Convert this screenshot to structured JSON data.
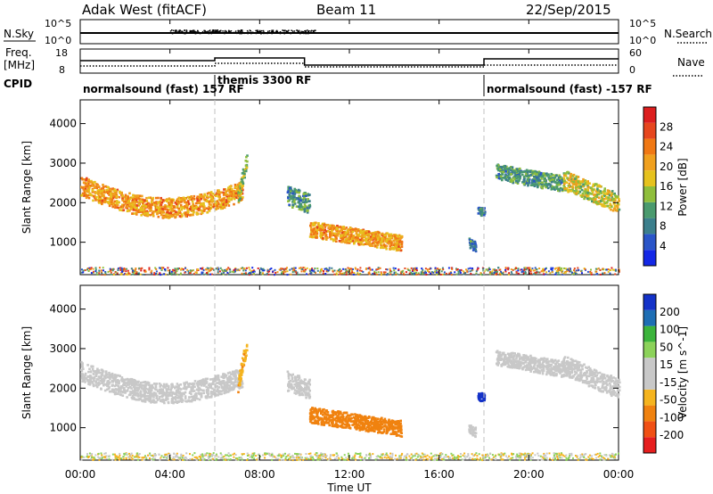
{
  "header": {
    "radar": "Adak West (fitACF)",
    "beam": "Beam 11",
    "date": "22/Sep/2015"
  },
  "strip": {
    "nsky_label": "N.Sky",
    "nsky_ticks": [
      "10^5",
      "10^0"
    ],
    "nsearch_label": "N.Search",
    "freq_label_line1": "Freq.",
    "freq_label_line2": "[MHz]",
    "freq_ticks": [
      "18",
      "8"
    ],
    "nave_ticks": [
      "60",
      "0"
    ],
    "nave_label": "Nave",
    "cpid_label": "CPID",
    "cpid_segments": [
      {
        "label": "normalsound (fast) 157 RF",
        "start_hour": 0,
        "end_hour": 6
      },
      {
        "label": "themis 3300 RF",
        "start_hour": 6,
        "end_hour": 18
      },
      {
        "label": "normalsound (fast) -157 RF",
        "start_hour": 18,
        "end_hour": 24
      }
    ]
  },
  "colors": {
    "power_scale": [
      "#1428e6",
      "#2a55c8",
      "#3c7f8c",
      "#4a9a6e",
      "#8fbe3c",
      "#e6c21e",
      "#f0a01e",
      "#f07814",
      "#e6461e",
      "#dc1e1e"
    ],
    "velocity_scale": [
      "#e61e1e",
      "#f05014",
      "#f0820f",
      "#f5b41e",
      "#c8c8c8",
      "#c8c8c8",
      "#8cd25a",
      "#3cb43c",
      "#1e6eb4",
      "#1432c8"
    ],
    "dash_line": "#c0c0c0"
  },
  "chart_data": [
    {
      "type": "heatmap",
      "title": "Power",
      "xlabel": "Time UT",
      "ylabel": "Slant Range [km]",
      "colorbar_label": "Power [dB]",
      "colorbar_ticks": [
        "4",
        "8",
        "12",
        "16",
        "20",
        "24",
        "28"
      ],
      "x_range_hours": [
        0,
        24
      ],
      "ylim": [
        180,
        4600
      ],
      "yticks": [
        "1000",
        "2000",
        "3000",
        "4000"
      ],
      "xticks": [
        "00:00",
        "04:00",
        "08:00",
        "12:00",
        "16:00",
        "20:00",
        "00:00"
      ],
      "scatter_bands": [
        {
          "t0": 0.0,
          "t1": 7.2,
          "r_start": 2450,
          "r_end": 2300,
          "r_mid_dip": 1850,
          "width": 500,
          "power": 20
        },
        {
          "t0": 7.0,
          "t1": 7.4,
          "r_start": 2100,
          "r_end": 3150,
          "width": 400,
          "power": 14
        },
        {
          "t0": 9.2,
          "t1": 10.2,
          "r_start": 2200,
          "r_end": 2000,
          "width": 500,
          "power": 10
        },
        {
          "t0": 10.2,
          "t1": 14.3,
          "r_start": 1350,
          "r_end": 1000,
          "width": 400,
          "power": 20
        },
        {
          "t0": 17.3,
          "t1": 17.6,
          "r_start": 1000,
          "r_end": 900,
          "width": 250,
          "power": 8
        },
        {
          "t0": 17.7,
          "t1": 18.0,
          "r_start": 1800,
          "r_end": 1800,
          "width": 200,
          "power": 8
        },
        {
          "t0": 18.5,
          "t1": 21.5,
          "r_start": 2800,
          "r_end": 2500,
          "width": 400,
          "power": 10
        },
        {
          "t0": 21.5,
          "t1": 24.0,
          "r_start": 2600,
          "r_end": 2000,
          "width": 500,
          "power": 16
        }
      ]
    },
    {
      "type": "heatmap",
      "title": "Velocity",
      "xlabel": "Time UT",
      "ylabel": "Slant Range [km]",
      "colorbar_label": "Velocity [m s^-1]",
      "colorbar_ticks": [
        "-200",
        "-100",
        "-50",
        "-15",
        "15",
        "50",
        "100",
        "200"
      ],
      "x_range_hours": [
        0,
        24
      ],
      "ylim": [
        180,
        4600
      ],
      "yticks": [
        "1000",
        "2000",
        "3000",
        "4000"
      ],
      "xticks": [
        "00:00",
        "04:00",
        "08:00",
        "12:00",
        "16:00",
        "20:00",
        "00:00"
      ],
      "scatter_bands": [
        {
          "t0": 0.0,
          "t1": 7.2,
          "r_start": 2450,
          "r_end": 2300,
          "r_mid_dip": 1850,
          "width": 500,
          "velocity": 0
        },
        {
          "t0": 7.0,
          "t1": 7.4,
          "r_start": 2100,
          "r_end": 3150,
          "width": 400,
          "velocity": -40
        },
        {
          "t0": 9.2,
          "t1": 10.2,
          "r_start": 2200,
          "r_end": 2000,
          "width": 500,
          "velocity": 0
        },
        {
          "t0": 10.2,
          "t1": 14.3,
          "r_start": 1350,
          "r_end": 1000,
          "width": 400,
          "velocity": -75
        },
        {
          "t0": 17.3,
          "t1": 17.6,
          "r_start": 1000,
          "r_end": 900,
          "width": 250,
          "velocity": 0
        },
        {
          "t0": 17.7,
          "t1": 18.0,
          "r_start": 1800,
          "r_end": 1800,
          "width": 200,
          "velocity": 250
        },
        {
          "t0": 18.5,
          "t1": 21.5,
          "r_start": 2800,
          "r_end": 2500,
          "width": 400,
          "velocity": 0
        },
        {
          "t0": 21.5,
          "t1": 24.0,
          "r_start": 2600,
          "r_end": 2000,
          "width": 500,
          "velocity": 0
        }
      ]
    }
  ]
}
